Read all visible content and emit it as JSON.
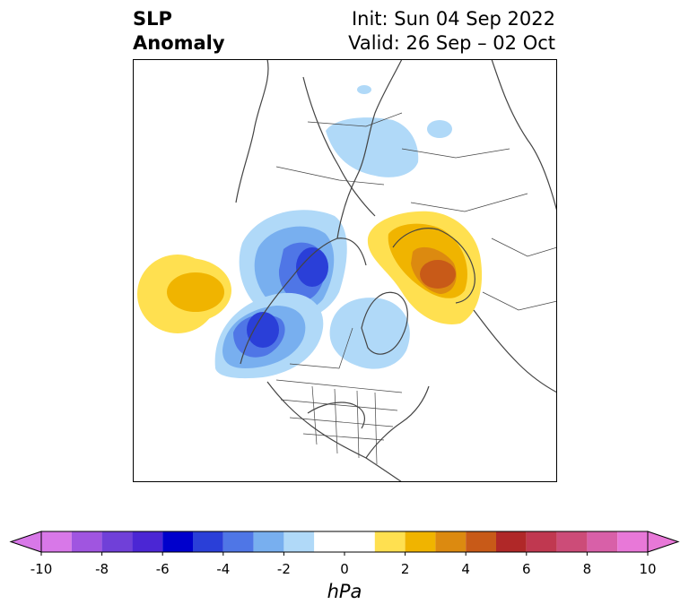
{
  "title": {
    "left_line1": "SLP",
    "left_line2": "Anomaly",
    "right_line1": "Init: Sun 04 Sep 2022",
    "right_line2": "Valid: 26 Sep – 02 Oct"
  },
  "map": {
    "projection": "polar stereographic, North America / Arctic",
    "anomaly_centers": [
      {
        "region": "central North Pacific",
        "sign": "positive",
        "peak_hpa": 2
      },
      {
        "region": "eastern Siberia / Bering Strait",
        "sign": "negative",
        "peak_hpa": -4
      },
      {
        "region": "Gulf of Alaska",
        "sign": "negative",
        "peak_hpa": -4
      },
      {
        "region": "Greenland / Nordic seas",
        "sign": "negative",
        "peak_hpa": -1
      },
      {
        "region": "Scandinavia / northwest Russia",
        "sign": "positive",
        "peak_hpa": 3
      },
      {
        "region": "Kara / Laptev Sea",
        "sign": "negative",
        "peak_hpa": -1
      }
    ]
  },
  "colorbar": {
    "unit_label": "hPa",
    "ticks": [
      "-10",
      "-8",
      "-6",
      "-4",
      "-2",
      "0",
      "2",
      "4",
      "6",
      "8",
      "10"
    ],
    "levels": [
      -10,
      -9,
      -8,
      -7,
      -6,
      -5,
      -4,
      -3,
      -2,
      -1,
      1,
      2,
      3,
      4,
      5,
      6,
      7,
      8,
      9,
      10
    ],
    "colors": [
      "#d878e8",
      "#a055e0",
      "#7040d8",
      "#4b26d4",
      "#0000cc",
      "#2a3fd8",
      "#4f76e6",
      "#78afef",
      "#b0d9f8",
      "#ffffff",
      "#ffe050",
      "#f0b400",
      "#dc8a10",
      "#c85a18",
      "#b02828",
      "#c03850",
      "#cc4c78",
      "#d860a8",
      "#e878d8"
    ],
    "extend_low_color": "#d878e8",
    "extend_high_color": "#e878d8"
  }
}
